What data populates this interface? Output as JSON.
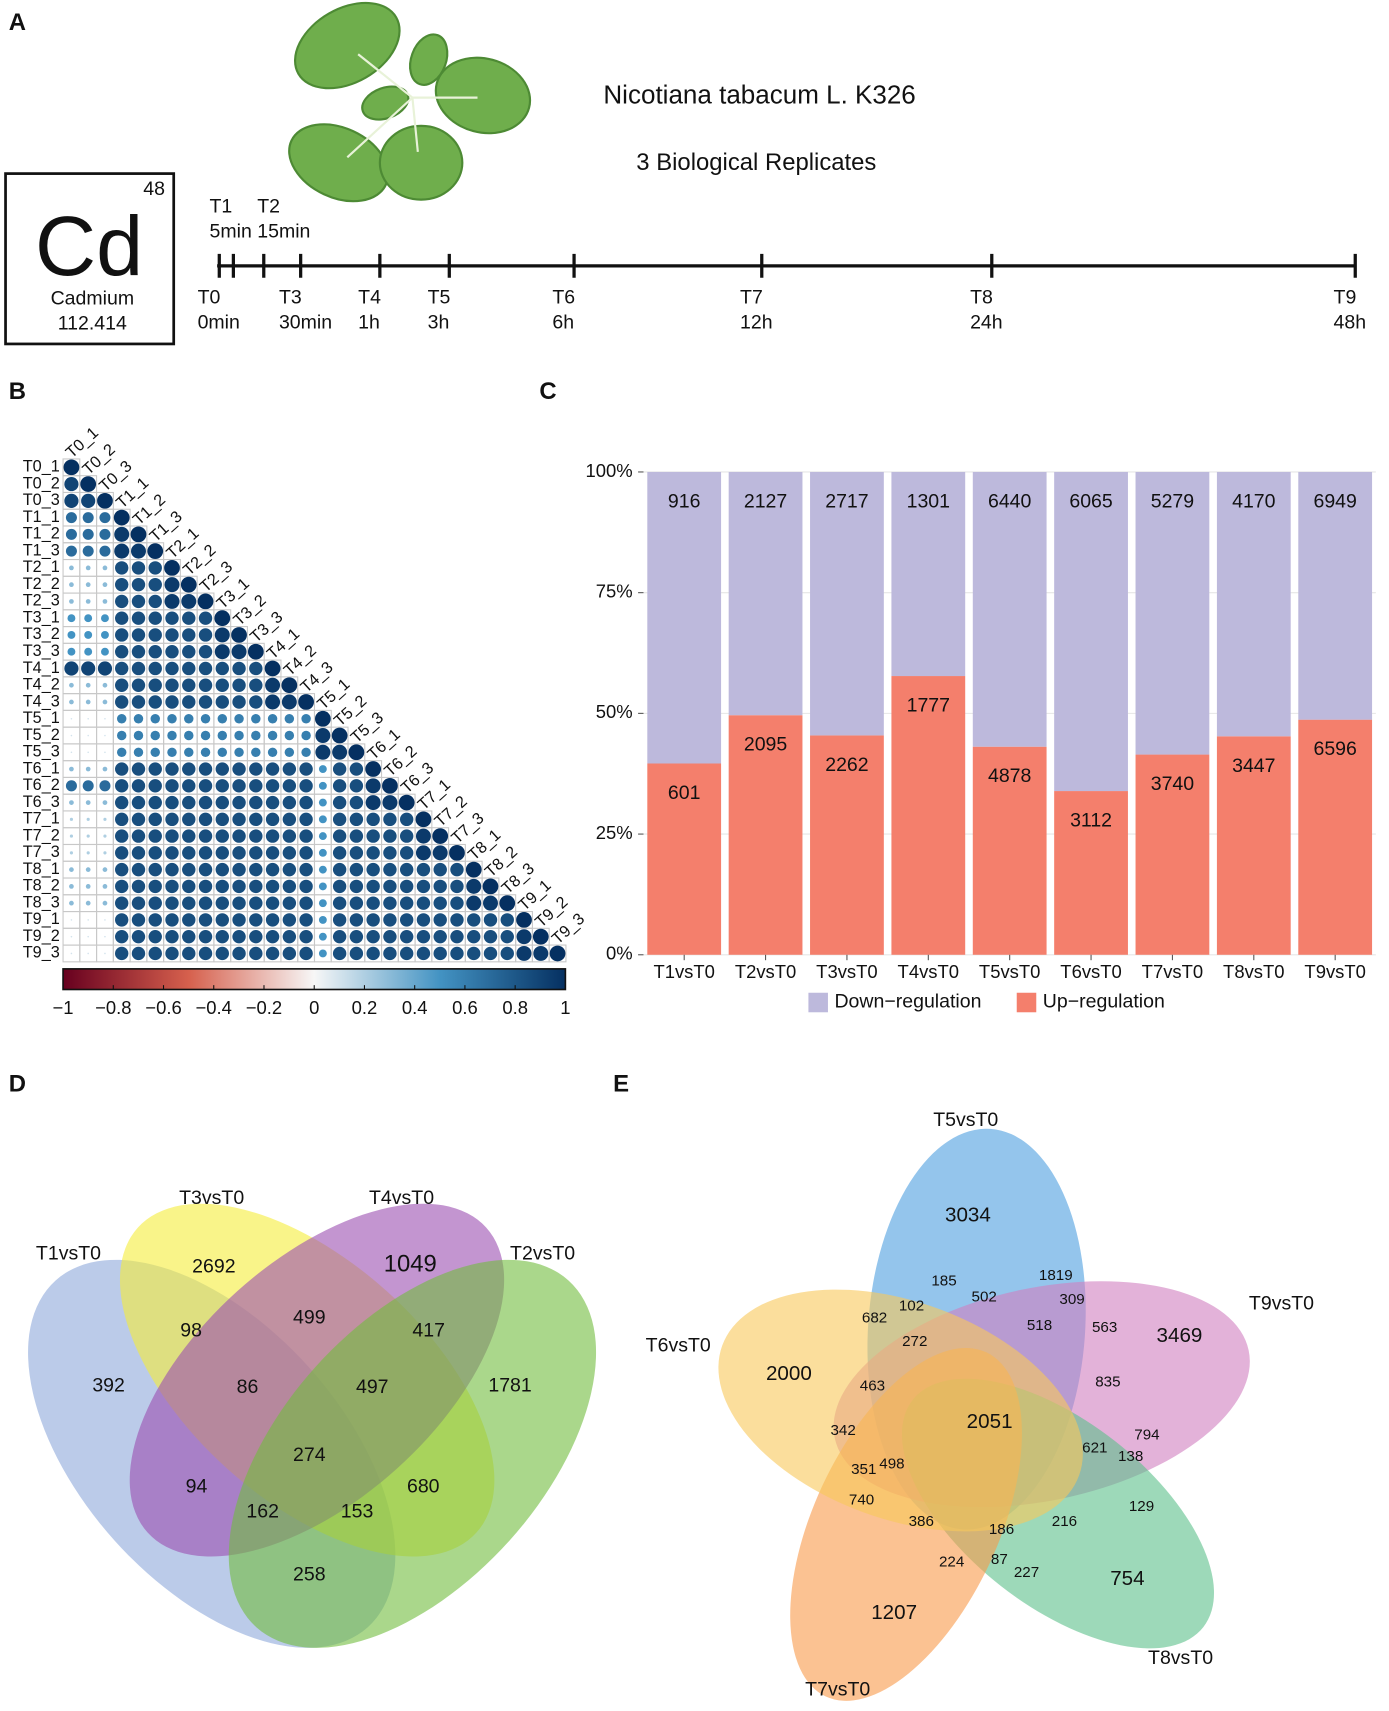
{
  "panel_labels": [
    "A",
    "B",
    "C",
    "D",
    "E"
  ],
  "element": {
    "number": "48",
    "symbol": "Cd",
    "name": "Cadmium",
    "mass": "112.414"
  },
  "species": "Nicotiana tabacum L. K326",
  "replicates": "3 Biological Replicates",
  "timeline": [
    {
      "point": "T0",
      "time": "0min"
    },
    {
      "point": "T1",
      "time": "5min"
    },
    {
      "point": "T2",
      "time": "15min"
    },
    {
      "point": "T3",
      "time": "30min"
    },
    {
      "point": "T4",
      "time": "1h"
    },
    {
      "point": "T5",
      "time": "3h"
    },
    {
      "point": "T6",
      "time": "6h"
    },
    {
      "point": "T7",
      "time": "12h"
    },
    {
      "point": "T8",
      "time": "24h"
    },
    {
      "point": "T9",
      "time": "48h"
    }
  ],
  "chart_data": [
    {
      "type": "correlation",
      "labels": [
        "T0_1",
        "T0_2",
        "T0_3",
        "T1_1",
        "T1_2",
        "T1_3",
        "T2_1",
        "T2_2",
        "T2_3",
        "T3_1",
        "T3_2",
        "T3_3",
        "T4_1",
        "T4_2",
        "T4_3",
        "T5_1",
        "T5_2",
        "T5_3",
        "T6_1",
        "T6_2",
        "T6_3",
        "T7_1",
        "T7_2",
        "T7_3",
        "T8_1",
        "T8_2",
        "T8_3",
        "T9_1",
        "T9_2",
        "T9_3"
      ],
      "values": [
        [
          1
        ],
        [
          0.9,
          1
        ],
        [
          0.9,
          0.9,
          1
        ],
        [
          0.7,
          0.7,
          0.7,
          1
        ],
        [
          0.7,
          0.7,
          0.7,
          0.95,
          1
        ],
        [
          0.7,
          0.7,
          0.7,
          0.95,
          0.95,
          1
        ],
        [
          0.3,
          0.3,
          0.3,
          0.85,
          0.85,
          0.85,
          1
        ],
        [
          0.3,
          0.3,
          0.3,
          0.85,
          0.85,
          0.85,
          0.95,
          1
        ],
        [
          0.3,
          0.3,
          0.3,
          0.85,
          0.85,
          0.85,
          0.95,
          0.95,
          1
        ],
        [
          0.5,
          0.5,
          0.5,
          0.85,
          0.85,
          0.85,
          0.85,
          0.85,
          0.85,
          1
        ],
        [
          0.5,
          0.5,
          0.5,
          0.85,
          0.85,
          0.85,
          0.85,
          0.85,
          0.85,
          0.95,
          1
        ],
        [
          0.5,
          0.5,
          0.5,
          0.85,
          0.85,
          0.85,
          0.85,
          0.85,
          0.85,
          0.95,
          0.95,
          1
        ],
        [
          0.9,
          0.9,
          0.9,
          0.85,
          0.85,
          0.85,
          0.85,
          0.85,
          0.85,
          0.85,
          0.85,
          0.85,
          1
        ],
        [
          0.3,
          0.3,
          0.3,
          0.85,
          0.85,
          0.85,
          0.85,
          0.85,
          0.85,
          0.85,
          0.85,
          0.85,
          0.95,
          1
        ],
        [
          0.3,
          0.3,
          0.3,
          0.85,
          0.85,
          0.85,
          0.85,
          0.85,
          0.85,
          0.85,
          0.85,
          0.85,
          0.95,
          0.95,
          1
        ],
        [
          0.1,
          0.1,
          0.1,
          0.6,
          0.6,
          0.6,
          0.6,
          0.6,
          0.6,
          0.6,
          0.6,
          0.6,
          0.6,
          0.6,
          0.6,
          1
        ],
        [
          0.1,
          0.1,
          0.1,
          0.6,
          0.6,
          0.6,
          0.6,
          0.6,
          0.6,
          0.6,
          0.6,
          0.6,
          0.6,
          0.6,
          0.6,
          0.95,
          1
        ],
        [
          0.1,
          0.1,
          0.1,
          0.6,
          0.6,
          0.6,
          0.6,
          0.6,
          0.6,
          0.6,
          0.6,
          0.6,
          0.6,
          0.6,
          0.6,
          0.95,
          0.95,
          1
        ],
        [
          0.3,
          0.3,
          0.3,
          0.85,
          0.85,
          0.85,
          0.85,
          0.85,
          0.85,
          0.85,
          0.85,
          0.85,
          0.85,
          0.85,
          0.85,
          0.5,
          0.85,
          0.85,
          1
        ],
        [
          0.7,
          0.7,
          0.7,
          0.85,
          0.85,
          0.85,
          0.85,
          0.85,
          0.85,
          0.85,
          0.85,
          0.85,
          0.85,
          0.85,
          0.85,
          0.5,
          0.85,
          0.85,
          0.95,
          1
        ],
        [
          0.3,
          0.3,
          0.3,
          0.85,
          0.85,
          0.85,
          0.85,
          0.85,
          0.85,
          0.85,
          0.85,
          0.85,
          0.85,
          0.85,
          0.85,
          0.5,
          0.85,
          0.85,
          0.95,
          0.95,
          1
        ],
        [
          0.2,
          0.2,
          0.2,
          0.85,
          0.85,
          0.85,
          0.85,
          0.85,
          0.85,
          0.85,
          0.85,
          0.85,
          0.85,
          0.85,
          0.85,
          0.5,
          0.85,
          0.85,
          0.85,
          0.85,
          0.85,
          1
        ],
        [
          0.2,
          0.2,
          0.2,
          0.85,
          0.85,
          0.85,
          0.85,
          0.85,
          0.85,
          0.85,
          0.85,
          0.85,
          0.85,
          0.85,
          0.85,
          0.5,
          0.85,
          0.85,
          0.85,
          0.85,
          0.85,
          0.95,
          1
        ],
        [
          0.2,
          0.2,
          0.2,
          0.85,
          0.85,
          0.85,
          0.85,
          0.85,
          0.85,
          0.85,
          0.85,
          0.85,
          0.85,
          0.85,
          0.85,
          0.5,
          0.85,
          0.85,
          0.85,
          0.85,
          0.85,
          0.95,
          0.95,
          1
        ],
        [
          0.3,
          0.3,
          0.3,
          0.85,
          0.85,
          0.85,
          0.85,
          0.85,
          0.85,
          0.85,
          0.85,
          0.85,
          0.85,
          0.85,
          0.85,
          0.5,
          0.85,
          0.85,
          0.85,
          0.85,
          0.85,
          0.85,
          0.85,
          0.85,
          1
        ],
        [
          0.3,
          0.3,
          0.3,
          0.85,
          0.85,
          0.85,
          0.85,
          0.85,
          0.85,
          0.85,
          0.85,
          0.85,
          0.85,
          0.85,
          0.85,
          0.5,
          0.85,
          0.85,
          0.85,
          0.85,
          0.85,
          0.85,
          0.85,
          0.85,
          0.95,
          1
        ],
        [
          0.3,
          0.3,
          0.3,
          0.85,
          0.85,
          0.85,
          0.85,
          0.85,
          0.85,
          0.85,
          0.85,
          0.85,
          0.85,
          0.85,
          0.85,
          0.5,
          0.85,
          0.85,
          0.85,
          0.85,
          0.85,
          0.85,
          0.85,
          0.85,
          0.95,
          0.95,
          1
        ],
        [
          0.1,
          0.1,
          0.1,
          0.85,
          0.85,
          0.85,
          0.85,
          0.85,
          0.85,
          0.85,
          0.85,
          0.85,
          0.85,
          0.85,
          0.85,
          0.5,
          0.85,
          0.85,
          0.85,
          0.85,
          0.85,
          0.85,
          0.85,
          0.85,
          0.85,
          0.85,
          0.85,
          1
        ],
        [
          0.1,
          0.1,
          0.1,
          0.85,
          0.85,
          0.85,
          0.85,
          0.85,
          0.85,
          0.85,
          0.85,
          0.85,
          0.85,
          0.85,
          0.85,
          0.5,
          0.85,
          0.85,
          0.85,
          0.85,
          0.85,
          0.85,
          0.85,
          0.85,
          0.85,
          0.85,
          0.85,
          0.95,
          1
        ],
        [
          0.1,
          0.1,
          0.1,
          0.85,
          0.85,
          0.85,
          0.85,
          0.85,
          0.85,
          0.85,
          0.85,
          0.85,
          0.85,
          0.85,
          0.85,
          0.5,
          0.85,
          0.85,
          0.85,
          0.85,
          0.85,
          0.85,
          0.85,
          0.85,
          0.85,
          0.85,
          0.85,
          0.95,
          0.95,
          1
        ]
      ],
      "colorbar": {
        "lim": [
          -1,
          1
        ],
        "ticks": [
          {
            "value": -1,
            "label": "−1"
          },
          {
            "value": -0.8,
            "label": "−0.8"
          },
          {
            "value": -0.6,
            "label": "−0.6"
          },
          {
            "value": -0.4,
            "label": "−0.4"
          },
          {
            "value": -0.2,
            "label": "−0.2"
          },
          0,
          0.2,
          0.4,
          0.6,
          0.8,
          1
        ],
        "colors": [
          "#67001f",
          "#d6604d",
          "#f7f7f7",
          "#4393c3",
          "#053061"
        ]
      }
    },
    {
      "type": "bar",
      "stack": "percent",
      "categories": [
        "T1vsT0",
        "T2vsT0",
        "T3vsT0",
        "T4vsT0",
        "T5vsT0",
        "T6vsT0",
        "T7vsT0",
        "T8vsT0",
        "T9vsT0"
      ],
      "series": [
        {
          "name": "Up−regulation",
          "color": "#f47f6c",
          "values": [
            601,
            2095,
            2262,
            1777,
            4878,
            3112,
            3740,
            3447,
            6596
          ]
        },
        {
          "name": "Down−regulation",
          "color": "#bdb9dc",
          "values": [
            916,
            2127,
            2717,
            1301,
            6440,
            6065,
            5279,
            4170,
            6949
          ]
        }
      ],
      "ylim": [
        0,
        100
      ],
      "yticks": [
        {
          "value": 0,
          "label": "0%"
        },
        {
          "value": 25,
          "label": "25%"
        },
        {
          "value": 50,
          "label": "50%"
        },
        {
          "value": 75,
          "label": "75%"
        },
        {
          "value": 100,
          "label": "100%"
        }
      ],
      "grid": true
    },
    {
      "type": "venn",
      "sets": [
        {
          "name": "T1vsT0",
          "color": "#8ea9db",
          "text_color": "#2b2f8f"
        },
        {
          "name": "T3vsT0",
          "color": "#f5ec3a",
          "text_color": "#f5a623"
        },
        {
          "name": "T4vsT0",
          "color": "#9b4fb0",
          "text_color": "#7b2d8e"
        },
        {
          "name": "T2vsT0",
          "color": "#72bd3e",
          "text_color": "#2a7d2a"
        }
      ],
      "counts": [
        392,
        2692,
        1049,
        1781,
        98,
        499,
        417,
        86,
        497,
        274,
        94,
        680,
        162,
        153,
        258
      ]
    },
    {
      "type": "venn",
      "sets": [
        {
          "name": "T5vsT0",
          "color": "#4d9ee0",
          "text_color": "#3a8bd0"
        },
        {
          "name": "T9vsT0",
          "color": "#d07ec0",
          "text_color": "#c06aac"
        },
        {
          "name": "T8vsT0",
          "color": "#5cc08a",
          "text_color": "#3aa66a"
        },
        {
          "name": "T7vsT0",
          "color": "#f89a4a",
          "text_color": "#f0862a"
        },
        {
          "name": "T6vsT0",
          "color": "#f9c85a",
          "text_color": "#f2b530"
        }
      ],
      "counts": [
        3034,
        185,
        1819,
        502,
        309,
        102,
        682,
        518,
        563,
        272,
        3469,
        2000,
        835,
        463,
        2051,
        342,
        794,
        621,
        138,
        351,
        498,
        740,
        129,
        386,
        216,
        186,
        224,
        87,
        227,
        754,
        1207
      ]
    }
  ]
}
